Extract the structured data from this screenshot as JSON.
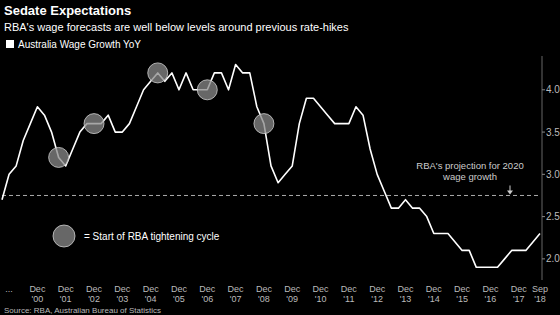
{
  "chart_data": {
    "type": "line",
    "title": "Sedate Expectations",
    "subtitle": "RBA's wage forecasts are well below levels around previous rate-hikes",
    "source": "Source: RBA, Australian Bureau of Statistics",
    "categories": [
      null,
      "...",
      null,
      null,
      null,
      "Dec '00",
      null,
      null,
      null,
      "Dec '01",
      null,
      null,
      null,
      "Dec '02",
      null,
      null,
      null,
      "Dec '03",
      null,
      null,
      null,
      "Dec '04",
      null,
      null,
      null,
      "Dec '05",
      null,
      null,
      null,
      "Dec '06",
      null,
      null,
      null,
      "Dec '07",
      null,
      null,
      null,
      "Dec '08",
      null,
      null,
      null,
      "Dec '09",
      null,
      null,
      null,
      "Dec '10",
      null,
      null,
      null,
      "Dec '11",
      null,
      null,
      null,
      "Dec '12",
      null,
      null,
      null,
      "Dec '13",
      null,
      null,
      null,
      "Dec '14",
      null,
      null,
      null,
      "Dec '15",
      null,
      null,
      null,
      "Dec '16",
      null,
      null,
      null,
      "Dec '17",
      null,
      null,
      "Sep '18"
    ],
    "series": [
      {
        "name": "Australia Wage Growth YoY",
        "type": "line",
        "color": "#ffffff",
        "values": [
          2.7,
          3.0,
          3.1,
          3.4,
          3.6,
          3.8,
          3.7,
          3.5,
          3.2,
          3.1,
          3.3,
          3.5,
          3.6,
          3.6,
          3.6,
          3.7,
          3.5,
          3.5,
          3.6,
          3.8,
          4.0,
          4.1,
          4.2,
          4.1,
          4.2,
          4.0,
          4.2,
          4.0,
          4.0,
          4.0,
          4.2,
          4.2,
          4.0,
          4.3,
          4.2,
          4.2,
          3.8,
          3.6,
          3.1,
          2.9,
          3.0,
          3.1,
          3.6,
          3.9,
          3.9,
          3.8,
          3.7,
          3.6,
          3.6,
          3.6,
          3.8,
          3.7,
          3.3,
          3.0,
          2.8,
          2.6,
          2.6,
          2.7,
          2.6,
          2.6,
          2.5,
          2.3,
          2.3,
          2.3,
          2.2,
          2.1,
          2.1,
          1.9,
          1.9,
          1.9,
          1.9,
          2.0,
          2.1,
          2.1,
          2.1,
          2.2,
          2.3
        ]
      },
      {
        "name": "= Start of RBA tightening cycle",
        "type": "scatter",
        "marker": "circle",
        "color": "#8a8a8a",
        "values": [
          null,
          null,
          null,
          null,
          null,
          null,
          null,
          null,
          3.2,
          null,
          null,
          null,
          null,
          3.6,
          null,
          null,
          null,
          null,
          null,
          null,
          null,
          null,
          4.2,
          null,
          null,
          null,
          null,
          null,
          null,
          4.0,
          null,
          null,
          null,
          null,
          null,
          null,
          null,
          3.6,
          null,
          null,
          null,
          null,
          null,
          null,
          null,
          null,
          null,
          null,
          null,
          null,
          null,
          null,
          null,
          null,
          null,
          null,
          null,
          null,
          null,
          null,
          null,
          null,
          null,
          null,
          null,
          null,
          null,
          null,
          null,
          null,
          null,
          null,
          null,
          null,
          null,
          null,
          null
        ]
      }
    ],
    "annotations": [
      {
        "text": "RBA's projection for 2020 wage growth",
        "y": 2.75,
        "line_style": "dashed"
      }
    ],
    "ylim": [
      1.75,
      4.4
    ],
    "yticks": [
      {
        "value": 2,
        "label": "2.0"
      },
      {
        "value": 2.5,
        "label": "2.5"
      },
      {
        "value": 3,
        "label": "3.0"
      },
      {
        "value": 3.5,
        "label": "3.5"
      },
      {
        "value": 4,
        "label": "4.0"
      }
    ],
    "grid": false
  }
}
